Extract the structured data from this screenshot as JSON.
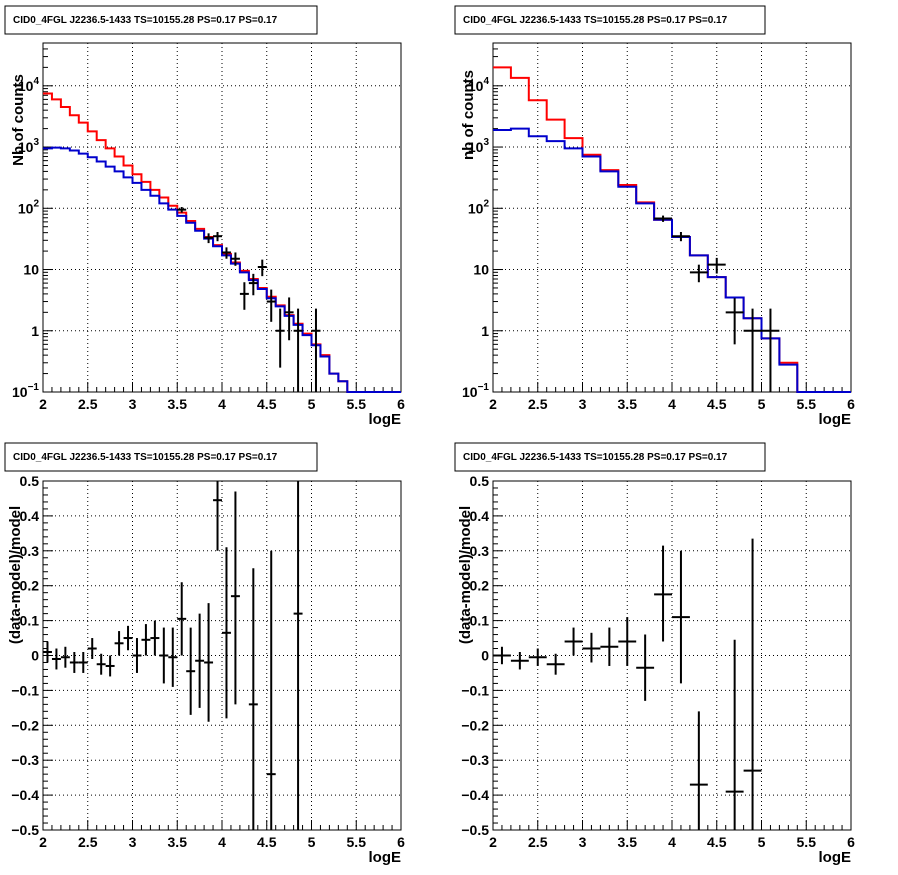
{
  "chart_data": [
    {
      "type": "line",
      "title": "CID0_4FGL J2236.5-1433 TS=10155.28 PS=0.17 PS=0.17",
      "xlabel": "logE",
      "ylabel": "Nb of counts",
      "xlim": [
        2,
        6
      ],
      "ylim": [
        0.1,
        50000
      ],
      "yscale": "log",
      "grid": true,
      "x_ticks": [
        "2",
        "2.5",
        "3",
        "3.5",
        "4",
        "4.5",
        "5",
        "5.5",
        "6"
      ],
      "y_ticks": [
        {
          "value": 0.1,
          "label": "10",
          "exp": "−1"
        },
        {
          "value": 1,
          "label": "1",
          "exp": ""
        },
        {
          "value": 10,
          "label": "10",
          "exp": ""
        },
        {
          "value": 100,
          "label": "10",
          "exp": "2"
        },
        {
          "value": 1000,
          "label": "10",
          "exp": "3"
        },
        {
          "value": 10000,
          "label": "10",
          "exp": "4"
        }
      ],
      "bin_edges": [
        2.0,
        2.1,
        2.2,
        2.3,
        2.4,
        2.5,
        2.6,
        2.7,
        2.8,
        2.9,
        3.0,
        3.1,
        3.2,
        3.3,
        3.4,
        3.5,
        3.6,
        3.7,
        3.8,
        3.9,
        4.0,
        4.1,
        4.2,
        4.3,
        4.4,
        4.5,
        4.6,
        4.7,
        4.8,
        4.9,
        5.0,
        5.1,
        5.2,
        5.3,
        5.4,
        5.5,
        5.6,
        5.7,
        5.8,
        5.9,
        6.0
      ],
      "series": [
        {
          "color": "#ff0000",
          "values": [
            7500,
            6000,
            4500,
            3300,
            2500,
            1800,
            1300,
            950,
            700,
            500,
            360,
            270,
            200,
            150,
            110,
            85,
            62,
            46,
            34,
            25,
            18,
            13,
            9.5,
            7,
            5,
            3.6,
            2.6,
            1.8,
            1.3,
            0.9,
            0.6,
            0.4,
            0.2,
            0.15,
            0.1,
            0.1,
            0.1,
            0.1,
            0.1,
            0.1
          ]
        },
        {
          "color": "#0000cc",
          "values": [
            950,
            980,
            950,
            880,
            780,
            680,
            580,
            480,
            400,
            320,
            260,
            200,
            160,
            120,
            95,
            75,
            58,
            43,
            32,
            24,
            17,
            12.5,
            9,
            6.7,
            4.8,
            3.4,
            2.5,
            1.75,
            1.25,
            0.85,
            0.58,
            0.38,
            0.2,
            0.15,
            0.1,
            0.1,
            0.1,
            0.1,
            0.1,
            0.1
          ]
        }
      ],
      "points": [
        {
          "x": 3.55,
          "y": 95,
          "ylo": 85,
          "yhi": 105
        },
        {
          "x": 3.85,
          "y": 33,
          "ylo": 27,
          "yhi": 39
        },
        {
          "x": 3.95,
          "y": 35,
          "ylo": 29,
          "yhi": 41
        },
        {
          "x": 4.05,
          "y": 19,
          "ylo": 15,
          "yhi": 23
        },
        {
          "x": 4.15,
          "y": 15,
          "ylo": 11.5,
          "yhi": 19
        },
        {
          "x": 4.25,
          "y": 4,
          "ylo": 2.2,
          "yhi": 6.2
        },
        {
          "x": 4.35,
          "y": 6,
          "ylo": 3.8,
          "yhi": 8.5
        },
        {
          "x": 4.45,
          "y": 11,
          "ylo": 7.8,
          "yhi": 14.5
        },
        {
          "x": 4.55,
          "y": 3,
          "ylo": 1.4,
          "yhi": 4.7
        },
        {
          "x": 4.65,
          "y": 1,
          "ylo": 0.25,
          "yhi": 2.3
        },
        {
          "x": 4.75,
          "y": 2,
          "ylo": 0.7,
          "yhi": 3.5
        },
        {
          "x": 4.85,
          "y": 1,
          "ylo": 0.1,
          "yhi": 2.3
        },
        {
          "x": 5.05,
          "y": 1,
          "ylo": 0.1,
          "yhi": 2.3
        }
      ]
    },
    {
      "type": "line",
      "title": "CID0_4FGL J2236.5-1433 TS=10155.28 PS=0.17 PS=0.17",
      "xlabel": "logE",
      "ylabel": "nb of counts",
      "xlim": [
        2,
        6
      ],
      "ylim": [
        0.1,
        50000
      ],
      "yscale": "log",
      "grid": true,
      "x_ticks": [
        "2",
        "2.5",
        "3",
        "3.5",
        "4",
        "4.5",
        "5",
        "5.5",
        "6"
      ],
      "y_ticks": [
        {
          "value": 0.1,
          "label": "10",
          "exp": "−1"
        },
        {
          "value": 1,
          "label": "1",
          "exp": ""
        },
        {
          "value": 10,
          "label": "10",
          "exp": ""
        },
        {
          "value": 100,
          "label": "10",
          "exp": "2"
        },
        {
          "value": 1000,
          "label": "10",
          "exp": "3"
        },
        {
          "value": 10000,
          "label": "10",
          "exp": "4"
        }
      ],
      "bin_edges": [
        2.0,
        2.2,
        2.4,
        2.6,
        2.8,
        3.0,
        3.2,
        3.4,
        3.6,
        3.8,
        4.0,
        4.2,
        4.4,
        4.6,
        4.8,
        5.0,
        5.2,
        5.4,
        5.6,
        5.8,
        6.0
      ],
      "series": [
        {
          "color": "#ff0000",
          "values": [
            20000,
            13500,
            5800,
            2800,
            1400,
            750,
            420,
            240,
            125,
            65,
            34,
            17,
            7.5,
            3.5,
            1.6,
            0.75,
            0.3,
            0.1,
            0.1,
            0.1
          ]
        },
        {
          "color": "#0000cc",
          "values": [
            1900,
            2000,
            1500,
            1250,
            950,
            700,
            400,
            225,
            120,
            65,
            34,
            17,
            7.5,
            3.5,
            1.6,
            0.75,
            0.28,
            0.1,
            0.1,
            0.1
          ]
        }
      ],
      "points": [
        {
          "x": 3.9,
          "y": 68,
          "ylo": 60,
          "yhi": 76
        },
        {
          "x": 4.1,
          "y": 35,
          "ylo": 29,
          "yhi": 41
        },
        {
          "x": 4.3,
          "y": 9,
          "ylo": 6.2,
          "yhi": 12
        },
        {
          "x": 4.5,
          "y": 12,
          "ylo": 8.6,
          "yhi": 15.5
        },
        {
          "x": 4.7,
          "y": 2,
          "ylo": 0.6,
          "yhi": 3.4
        },
        {
          "x": 4.9,
          "y": 1,
          "ylo": 0.1,
          "yhi": 2.3
        },
        {
          "x": 5.1,
          "y": 1,
          "ylo": 0.1,
          "yhi": 2.3
        }
      ]
    },
    {
      "type": "scatter",
      "title": "CID0_4FGL J2236.5-1433 TS=10155.28 PS=0.17 PS=0.17",
      "xlabel": "logE",
      "ylabel": "(data-model)/model",
      "xlim": [
        2,
        6
      ],
      "ylim": [
        -0.5,
        0.5
      ],
      "yscale": "linear",
      "grid": true,
      "x_ticks": [
        "2",
        "2.5",
        "3",
        "3.5",
        "4",
        "4.5",
        "5",
        "5.5",
        "6"
      ],
      "y_ticks": [
        {
          "value": -0.5,
          "label": "−0.5"
        },
        {
          "value": -0.4,
          "label": "−0.4"
        },
        {
          "value": -0.3,
          "label": "−0.3"
        },
        {
          "value": -0.2,
          "label": "−0.2"
        },
        {
          "value": -0.1,
          "label": "−0.1"
        },
        {
          "value": 0,
          "label": "0"
        },
        {
          "value": 0.1,
          "label": "0.1"
        },
        {
          "value": 0.2,
          "label": "0.2"
        },
        {
          "value": 0.3,
          "label": "0.3"
        },
        {
          "value": 0.4,
          "label": "0.4"
        },
        {
          "value": 0.5,
          "label": "0.5"
        }
      ],
      "bin_width": 0.1,
      "points": [
        {
          "x": 2.05,
          "y": 0.01,
          "ylo": -0.02,
          "yhi": 0.04
        },
        {
          "x": 2.15,
          "y": -0.01,
          "ylo": -0.04,
          "yhi": 0.02
        },
        {
          "x": 2.25,
          "y": -0.005,
          "ylo": -0.035,
          "yhi": 0.025
        },
        {
          "x": 2.35,
          "y": -0.02,
          "ylo": -0.05,
          "yhi": 0.01
        },
        {
          "x": 2.45,
          "y": -0.02,
          "ylo": -0.05,
          "yhi": 0.01
        },
        {
          "x": 2.55,
          "y": 0.02,
          "ylo": -0.01,
          "yhi": 0.05
        },
        {
          "x": 2.65,
          "y": -0.025,
          "ylo": -0.055,
          "yhi": 0.005
        },
        {
          "x": 2.75,
          "y": -0.03,
          "ylo": -0.06,
          "yhi": 0.0
        },
        {
          "x": 2.85,
          "y": 0.035,
          "ylo": 0.0,
          "yhi": 0.07
        },
        {
          "x": 2.95,
          "y": 0.05,
          "ylo": 0.015,
          "yhi": 0.085
        },
        {
          "x": 3.05,
          "y": 0.0,
          "ylo": -0.05,
          "yhi": 0.05
        },
        {
          "x": 3.15,
          "y": 0.045,
          "ylo": 0.0,
          "yhi": 0.09
        },
        {
          "x": 3.25,
          "y": 0.05,
          "ylo": 0.0,
          "yhi": 0.1
        },
        {
          "x": 3.35,
          "y": 0.0,
          "ylo": -0.08,
          "yhi": 0.08
        },
        {
          "x": 3.45,
          "y": -0.005,
          "ylo": -0.09,
          "yhi": 0.08
        },
        {
          "x": 3.55,
          "y": 0.105,
          "ylo": 0.0,
          "yhi": 0.21
        },
        {
          "x": 3.65,
          "y": -0.045,
          "ylo": -0.17,
          "yhi": 0.08
        },
        {
          "x": 3.75,
          "y": -0.015,
          "ylo": -0.15,
          "yhi": 0.12
        },
        {
          "x": 3.85,
          "y": -0.02,
          "ylo": -0.19,
          "yhi": 0.15
        },
        {
          "x": 3.95,
          "y": 0.445,
          "ylo": 0.3,
          "yhi": 0.5
        },
        {
          "x": 4.05,
          "y": 0.065,
          "ylo": -0.18,
          "yhi": 0.31
        },
        {
          "x": 4.15,
          "y": 0.17,
          "ylo": -0.14,
          "yhi": 0.47
        },
        {
          "x": 4.35,
          "y": -0.14,
          "ylo": -0.5,
          "yhi": 0.25
        },
        {
          "x": 4.55,
          "y": -0.34,
          "ylo": -0.5,
          "yhi": 0.3
        },
        {
          "x": 4.85,
          "y": 0.12,
          "ylo": -0.5,
          "yhi": 0.5
        }
      ]
    },
    {
      "type": "scatter",
      "title": "CID0_4FGL J2236.5-1433 TS=10155.28 PS=0.17 PS=0.17",
      "xlabel": "logE",
      "ylabel": "(data-model)/model",
      "xlim": [
        2,
        6
      ],
      "ylim": [
        -0.5,
        0.5
      ],
      "yscale": "linear",
      "grid": true,
      "x_ticks": [
        "2",
        "2.5",
        "3",
        "3.5",
        "4",
        "4.5",
        "5",
        "5.5",
        "6"
      ],
      "y_ticks": [
        {
          "value": -0.5,
          "label": "−0.5"
        },
        {
          "value": -0.4,
          "label": "−0.4"
        },
        {
          "value": -0.3,
          "label": "−0.3"
        },
        {
          "value": -0.2,
          "label": "−0.2"
        },
        {
          "value": -0.1,
          "label": "−0.1"
        },
        {
          "value": 0,
          "label": "0"
        },
        {
          "value": 0.1,
          "label": "0.1"
        },
        {
          "value": 0.2,
          "label": "0.2"
        },
        {
          "value": 0.3,
          "label": "0.3"
        },
        {
          "value": 0.4,
          "label": "0.4"
        },
        {
          "value": 0.5,
          "label": "0.5"
        }
      ],
      "bin_width": 0.2,
      "points": [
        {
          "x": 2.1,
          "y": 0.0,
          "ylo": -0.025,
          "yhi": 0.025
        },
        {
          "x": 2.3,
          "y": -0.015,
          "ylo": -0.04,
          "yhi": 0.01
        },
        {
          "x": 2.5,
          "y": -0.005,
          "ylo": -0.03,
          "yhi": 0.02
        },
        {
          "x": 2.7,
          "y": -0.025,
          "ylo": -0.055,
          "yhi": 0.005
        },
        {
          "x": 2.9,
          "y": 0.04,
          "ylo": 0.0,
          "yhi": 0.08
        },
        {
          "x": 3.1,
          "y": 0.02,
          "ylo": -0.02,
          "yhi": 0.065
        },
        {
          "x": 3.3,
          "y": 0.025,
          "ylo": -0.03,
          "yhi": 0.08
        },
        {
          "x": 3.5,
          "y": 0.04,
          "ylo": -0.03,
          "yhi": 0.11
        },
        {
          "x": 3.7,
          "y": -0.035,
          "ylo": -0.13,
          "yhi": 0.06
        },
        {
          "x": 3.9,
          "y": 0.175,
          "ylo": 0.04,
          "yhi": 0.315
        },
        {
          "x": 4.1,
          "y": 0.11,
          "ylo": -0.08,
          "yhi": 0.3
        },
        {
          "x": 4.3,
          "y": -0.37,
          "ylo": -0.5,
          "yhi": -0.16
        },
        {
          "x": 4.7,
          "y": -0.39,
          "ylo": -0.5,
          "yhi": 0.045
        },
        {
          "x": 4.9,
          "y": -0.33,
          "ylo": -0.5,
          "yhi": 0.335
        }
      ]
    }
  ]
}
